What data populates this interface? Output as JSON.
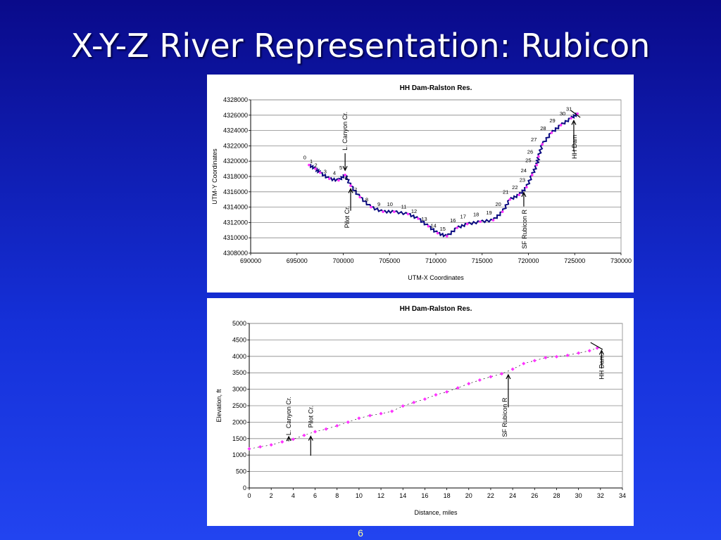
{
  "slide": {
    "title": "X-Y-Z River Representation: Rubicon",
    "page_number": "6"
  },
  "colors": {
    "river_line": "#0a0a80",
    "marker": "#ff33ff",
    "background": "#1530d8"
  },
  "chart_data": [
    {
      "type": "line",
      "title": "HH Dam-Ralston Res.",
      "xlabel": "UTM-X Coordinates",
      "ylabel": "UTM-Y Coordinates",
      "xlim": [
        690000,
        730000
      ],
      "ylim": [
        4308000,
        4328000
      ],
      "x_ticks": [
        "690000",
        "695000",
        "700000",
        "705000",
        "710000",
        "715000",
        "720000",
        "725000",
        "730000"
      ],
      "y_ticks": [
        "4308000",
        "4310000",
        "4312000",
        "4314000",
        "4316000",
        "4318000",
        "4320000",
        "4322000",
        "4324000",
        "4326000",
        "4328000"
      ],
      "grid": true,
      "series": [
        {
          "values": [
            {
              "x": 696300,
              "y": 4319500
            },
            {
              "x": 697000,
              "y": 4319000
            },
            {
              "x": 697500,
              "y": 4318500
            },
            {
              "x": 698500,
              "y": 4317700
            },
            {
              "x": 699500,
              "y": 4317500
            },
            {
              "x": 700200,
              "y": 4318200
            },
            {
              "x": 700800,
              "y": 4316800
            },
            {
              "x": 701800,
              "y": 4315300
            },
            {
              "x": 703000,
              "y": 4314000
            },
            {
              "x": 704300,
              "y": 4313400
            },
            {
              "x": 705500,
              "y": 4313400
            },
            {
              "x": 707000,
              "y": 4313100
            },
            {
              "x": 708100,
              "y": 4312500
            },
            {
              "x": 709200,
              "y": 4311500
            },
            {
              "x": 710200,
              "y": 4310600
            },
            {
              "x": 711200,
              "y": 4310200
            },
            {
              "x": 712300,
              "y": 4311300
            },
            {
              "x": 713400,
              "y": 4311800
            },
            {
              "x": 714800,
              "y": 4312100
            },
            {
              "x": 716200,
              "y": 4312300
            },
            {
              "x": 717200,
              "y": 4313400
            },
            {
              "x": 718000,
              "y": 4315000
            },
            {
              "x": 719000,
              "y": 4315600
            },
            {
              "x": 719800,
              "y": 4316600
            },
            {
              "x": 720400,
              "y": 4318200
            },
            {
              "x": 720900,
              "y": 4319500
            },
            {
              "x": 721100,
              "y": 4320600
            },
            {
              "x": 721500,
              "y": 4322200
            },
            {
              "x": 722500,
              "y": 4323700
            },
            {
              "x": 723500,
              "y": 4324700
            },
            {
              "x": 724600,
              "y": 4325600
            },
            {
              "x": 725300,
              "y": 4326200
            }
          ]
        }
      ],
      "point_labels": [
        "0",
        "1",
        "2",
        "3",
        "4",
        "5",
        "6",
        "7",
        "8",
        "9",
        "10",
        "11",
        "12",
        "13",
        "14",
        "15",
        "16",
        "17",
        "18",
        "19",
        "20",
        "21",
        "22",
        "23",
        "24",
        "25",
        "26",
        "27",
        "28",
        "29",
        "30",
        "31"
      ],
      "annotations": {
        "l_canyon": "L. Canyon Cr.",
        "pilot": "Pilot Cr.",
        "sf_rubicon": "SF Rubicon R",
        "hh_dam": "HH Dam"
      }
    },
    {
      "type": "scatter",
      "title": "HH Dam-Ralston Res.",
      "xlabel": "Distance, miles",
      "ylabel": "Elevation, ft",
      "xlim": [
        0,
        34
      ],
      "ylim": [
        0,
        5000
      ],
      "x_ticks": [
        "0",
        "2",
        "4",
        "6",
        "8",
        "10",
        "12",
        "14",
        "16",
        "18",
        "20",
        "22",
        "24",
        "26",
        "28",
        "30",
        "32",
        "34"
      ],
      "y_ticks": [
        "0",
        "500",
        "1000",
        "1500",
        "2000",
        "2500",
        "3000",
        "3500",
        "4000",
        "4500",
        "5000"
      ],
      "grid": true,
      "series": [
        {
          "values": [
            {
              "x": 0,
              "y": 1190
            },
            {
              "x": 1,
              "y": 1250
            },
            {
              "x": 2,
              "y": 1310
            },
            {
              "x": 3,
              "y": 1400
            },
            {
              "x": 4,
              "y": 1480
            },
            {
              "x": 5,
              "y": 1600
            },
            {
              "x": 6,
              "y": 1710
            },
            {
              "x": 7,
              "y": 1790
            },
            {
              "x": 8,
              "y": 1890
            },
            {
              "x": 9,
              "y": 2000
            },
            {
              "x": 10,
              "y": 2120
            },
            {
              "x": 11,
              "y": 2200
            },
            {
              "x": 12,
              "y": 2260
            },
            {
              "x": 13,
              "y": 2330
            },
            {
              "x": 14,
              "y": 2490
            },
            {
              "x": 15,
              "y": 2600
            },
            {
              "x": 16,
              "y": 2700
            },
            {
              "x": 17,
              "y": 2830
            },
            {
              "x": 18,
              "y": 2920
            },
            {
              "x": 19,
              "y": 3040
            },
            {
              "x": 20,
              "y": 3170
            },
            {
              "x": 21,
              "y": 3280
            },
            {
              "x": 22,
              "y": 3380
            },
            {
              "x": 23,
              "y": 3470
            },
            {
              "x": 24,
              "y": 3610
            },
            {
              "x": 25,
              "y": 3780
            },
            {
              "x": 26,
              "y": 3870
            },
            {
              "x": 27,
              "y": 3960
            },
            {
              "x": 28,
              "y": 3990
            },
            {
              "x": 29,
              "y": 4030
            },
            {
              "x": 30,
              "y": 4100
            },
            {
              "x": 31,
              "y": 4170
            },
            {
              "x": 31.7,
              "y": 4250
            }
          ]
        }
      ],
      "annotations": {
        "l_canyon": "L. Canyon Cr.",
        "pilot": "Pilot Cr.",
        "sf_rubicon": "SF Rubicon R",
        "hh_dam": "HH Dam"
      }
    }
  ]
}
